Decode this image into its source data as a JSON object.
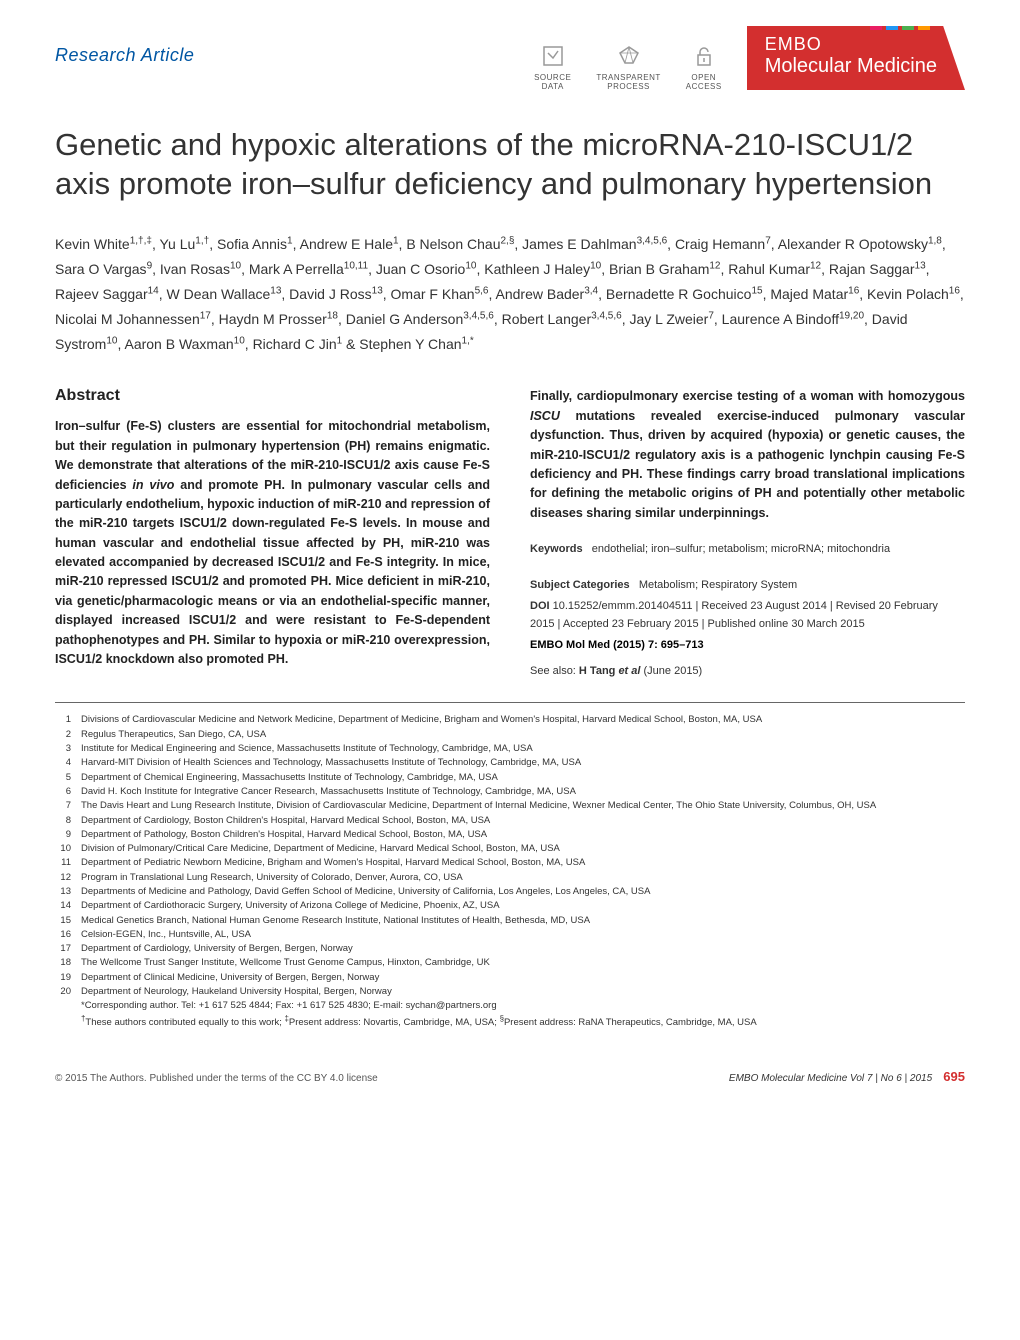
{
  "header": {
    "article_type": "Research Article",
    "badges": {
      "source_data": "SOURCE\nDATA",
      "transparent": "TRANSPARENT\nPROCESS",
      "open_access": "OPEN\nACCESS"
    },
    "journal": {
      "top": "EMBO",
      "bottom": "Molecular Medicine",
      "stripe_colors": [
        "#e91e63",
        "#2196f3",
        "#4caf50",
        "#ff9800"
      ]
    }
  },
  "title": "Genetic and hypoxic alterations of the microRNA-210-ISCU1/2 axis promote iron–sulfur deficiency and pulmonary hypertension",
  "authors_html": "Kevin White<sup>1,†,‡</sup>, Yu Lu<sup>1,†</sup>, Sofia Annis<sup>1</sup>, Andrew E Hale<sup>1</sup>, B Nelson Chau<sup>2,§</sup>, James E Dahlman<sup>3,4,5,6</sup>, Craig Hemann<sup>7</sup>, Alexander R Opotowsky<sup>1,8</sup>, Sara O Vargas<sup>9</sup>, Ivan Rosas<sup>10</sup>, Mark A Perrella<sup>10,11</sup>, Juan C Osorio<sup>10</sup>, Kathleen J Haley<sup>10</sup>, Brian B Graham<sup>12</sup>, Rahul Kumar<sup>12</sup>, Rajan Saggar<sup>13</sup>, Rajeev Saggar<sup>14</sup>, W Dean Wallace<sup>13</sup>, David J Ross<sup>13</sup>, Omar F Khan<sup>5,6</sup>, Andrew Bader<sup>3,4</sup>, Bernadette R Gochuico<sup>15</sup>, Majed Matar<sup>16</sup>, Kevin Polach<sup>16</sup>, Nicolai M Johannessen<sup>17</sup>, Haydn M Prosser<sup>18</sup>, Daniel G Anderson<sup>3,4,5,6</sup>, Robert Langer<sup>3,4,5,6</sup>, Jay L Zweier<sup>7</sup>, Laurence A Bindoff<sup>19,20</sup>, David Systrom<sup>10</sup>, Aaron B Waxman<sup>10</sup>, Richard C Jin<sup>1</sup> & Stephen Y Chan<sup>1,*</sup>",
  "abstract": {
    "heading": "Abstract",
    "col1": "Iron–sulfur (Fe-S) clusters are essential for mitochondrial metabolism, but their regulation in pulmonary hypertension (PH) remains enigmatic. We demonstrate that alterations of the miR-210-ISCU1/2 axis cause Fe-S deficiencies in vivo and promote PH. In pulmonary vascular cells and particularly endothelium, hypoxic induction of miR-210 and repression of the miR-210 targets ISCU1/2 down-regulated Fe-S levels. In mouse and human vascular and endothelial tissue affected by PH, miR-210 was elevated accompanied by decreased ISCU1/2 and Fe-S integrity. In mice, miR-210 repressed ISCU1/2 and promoted PH. Mice deficient in miR-210, via genetic/pharmacologic means or via an endothelial-specific manner, displayed increased ISCU1/2 and were resistant to Fe-S-dependent pathophenotypes and PH. Similar to hypoxia or miR-210 overexpression, ISCU1/2 knockdown also promoted PH.",
    "col2": "Finally, cardiopulmonary exercise testing of a woman with homozygous ISCU mutations revealed exercise-induced pulmonary vascular dysfunction. Thus, driven by acquired (hypoxia) or genetic causes, the miR-210-ISCU1/2 regulatory axis is a pathogenic lynchpin causing Fe-S deficiency and PH. These findings carry broad translational implications for defining the metabolic origins of PH and potentially other metabolic diseases sharing similar underpinnings."
  },
  "keywords": {
    "label": "Keywords",
    "text": "endothelial; iron–sulfur; metabolism; microRNA; mitochondria"
  },
  "subject": {
    "label": "Subject Categories",
    "text": "Metabolism; Respiratory System"
  },
  "doi": {
    "label": "DOI",
    "text": "10.15252/emmm.201404511 | Received 23 August 2014 | Revised 20 February 2015 | Accepted 23 February 2015 | Published online 30 March 2015"
  },
  "citation": "EMBO Mol Med (2015) 7: 695–713",
  "see_also": "See also: H Tang et al (June 2015)",
  "affiliations": [
    {
      "n": "1",
      "t": "Divisions of Cardiovascular Medicine and Network Medicine, Department of Medicine, Brigham and Women's Hospital, Harvard Medical School, Boston, MA, USA"
    },
    {
      "n": "2",
      "t": "Regulus Therapeutics, San Diego, CA, USA"
    },
    {
      "n": "3",
      "t": "Institute for Medical Engineering and Science, Massachusetts Institute of Technology, Cambridge, MA, USA"
    },
    {
      "n": "4",
      "t": "Harvard-MIT Division of Health Sciences and Technology, Massachusetts Institute of Technology, Cambridge, MA, USA"
    },
    {
      "n": "5",
      "t": "Department of Chemical Engineering, Massachusetts Institute of Technology, Cambridge, MA, USA"
    },
    {
      "n": "6",
      "t": "David H. Koch Institute for Integrative Cancer Research, Massachusetts Institute of Technology, Cambridge, MA, USA"
    },
    {
      "n": "7",
      "t": "The Davis Heart and Lung Research Institute, Division of Cardiovascular Medicine, Department of Internal Medicine, Wexner Medical Center, The Ohio State University, Columbus, OH, USA"
    },
    {
      "n": "8",
      "t": "Department of Cardiology, Boston Children's Hospital, Harvard Medical School, Boston, MA, USA"
    },
    {
      "n": "9",
      "t": "Department of Pathology, Boston Children's Hospital, Harvard Medical School, Boston, MA, USA"
    },
    {
      "n": "10",
      "t": "Division of Pulmonary/Critical Care Medicine, Department of Medicine, Harvard Medical School, Boston, MA, USA"
    },
    {
      "n": "11",
      "t": "Department of Pediatric Newborn Medicine, Brigham and Women's Hospital, Harvard Medical School, Boston, MA, USA"
    },
    {
      "n": "12",
      "t": "Program in Translational Lung Research, University of Colorado, Denver, Aurora, CO, USA"
    },
    {
      "n": "13",
      "t": "Departments of Medicine and Pathology, David Geffen School of Medicine, University of California, Los Angeles, Los Angeles, CA, USA"
    },
    {
      "n": "14",
      "t": "Department of Cardiothoracic Surgery, University of Arizona College of Medicine, Phoenix, AZ, USA"
    },
    {
      "n": "15",
      "t": "Medical Genetics Branch, National Human Genome Research Institute, National Institutes of Health, Bethesda, MD, USA"
    },
    {
      "n": "16",
      "t": "Celsion-EGEN, Inc., Huntsville, AL, USA"
    },
    {
      "n": "17",
      "t": "Department of Cardiology, University of Bergen, Bergen, Norway"
    },
    {
      "n": "18",
      "t": "The Wellcome Trust Sanger Institute, Wellcome Trust Genome Campus, Hinxton, Cambridge, UK"
    },
    {
      "n": "19",
      "t": "Department of Clinical Medicine, University of Bergen, Bergen, Norway"
    },
    {
      "n": "20",
      "t": "Department of Neurology, Haukeland University Hospital, Bergen, Norway"
    }
  ],
  "notes": {
    "corresponding": "*Corresponding author. Tel: +1 617 525 4844; Fax: +1 617 525 4830; E-mail: sychan@partners.org",
    "equal": "†These authors contributed equally to this work; ‡Present address: Novartis, Cambridge, MA, USA; §Present address: RaNA Therapeutics, Cambridge, MA, USA"
  },
  "footer": {
    "left": "© 2015 The Authors. Published under the terms of the CC BY 4.0 license",
    "right": "EMBO Molecular Medicine   Vol 7 | No 6 | 2015",
    "page": "695"
  }
}
